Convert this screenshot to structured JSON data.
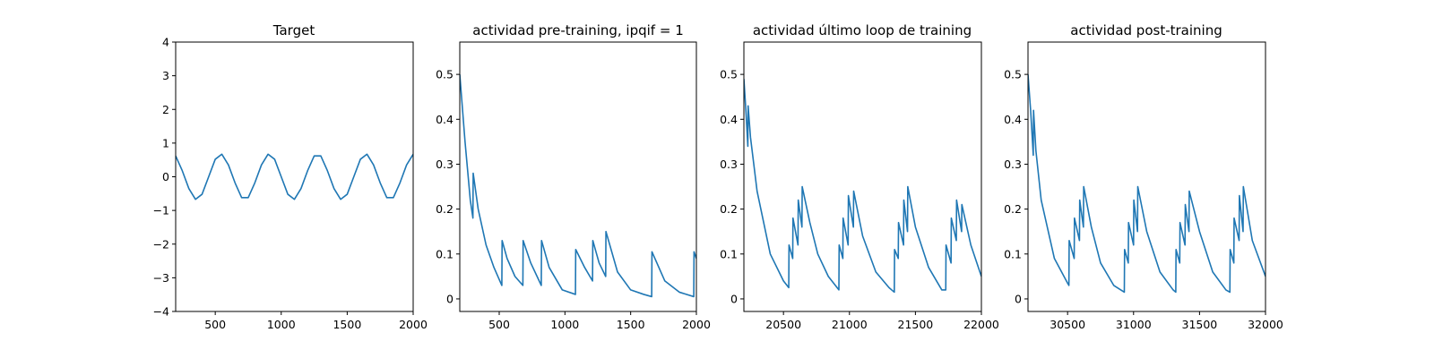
{
  "chart_data": [
    {
      "type": "line",
      "title": "Target",
      "xlabel": "",
      "ylabel": "",
      "xlim": [
        200,
        2000
      ],
      "ylim": [
        -4,
        4
      ],
      "xticks": [
        500,
        1000,
        1500,
        2000
      ],
      "yticks": [
        -4,
        -3,
        -2,
        -1,
        0,
        1,
        2,
        3,
        4
      ],
      "grid": false,
      "series": [
        {
          "x": [
            200,
            250,
            300,
            350,
            400,
            450,
            500,
            550,
            600,
            650,
            700,
            750,
            800,
            850,
            900,
            950,
            1000,
            1050,
            1100,
            1150,
            1200,
            1250,
            1300,
            1350,
            1400,
            1450,
            1500,
            1550,
            1600,
            1650,
            1700,
            1750,
            1800,
            1850,
            1900,
            1950,
            2000
          ],
          "y": [
            0.62,
            0.18,
            -0.35,
            -0.67,
            -0.52,
            0.0,
            0.52,
            0.67,
            0.35,
            -0.18,
            -0.62,
            -0.62,
            -0.18,
            0.35,
            0.67,
            0.52,
            0.0,
            -0.52,
            -0.67,
            -0.35,
            0.18,
            0.62,
            0.62,
            0.18,
            -0.35,
            -0.67,
            -0.52,
            0.0,
            0.52,
            0.67,
            0.35,
            -0.18,
            -0.62,
            -0.62,
            -0.18,
            0.35,
            0.67
          ]
        }
      ]
    },
    {
      "type": "line",
      "title": "actividad pre-training, ipqif = 1",
      "xlabel": "",
      "ylabel": "",
      "xlim": [
        200,
        2000
      ],
      "ylim": [
        -0.028,
        0.572
      ],
      "xticks": [
        500,
        1000,
        1500,
        2000
      ],
      "yticks": [
        0.0,
        0.1,
        0.2,
        0.3,
        0.4,
        0.5
      ],
      "grid": false,
      "series": [
        {
          "x": [
            200,
            240,
            280,
            300,
            302,
            340,
            400,
            460,
            520,
            522,
            560,
            620,
            680,
            682,
            740,
            820,
            822,
            880,
            980,
            1080,
            1082,
            1150,
            1210,
            1212,
            1260,
            1310,
            1312,
            1400,
            1500,
            1600,
            1660,
            1662,
            1760,
            1870,
            1980,
            1982,
            2000
          ],
          "y": [
            0.5,
            0.35,
            0.22,
            0.18,
            0.28,
            0.2,
            0.12,
            0.07,
            0.03,
            0.13,
            0.09,
            0.05,
            0.03,
            0.13,
            0.08,
            0.03,
            0.13,
            0.07,
            0.02,
            0.01,
            0.11,
            0.07,
            0.04,
            0.13,
            0.08,
            0.05,
            0.15,
            0.06,
            0.02,
            0.01,
            0.005,
            0.105,
            0.04,
            0.015,
            0.005,
            0.105,
            0.09
          ]
        }
      ]
    },
    {
      "type": "line",
      "title": "actividad último loop de training",
      "xlabel": "",
      "ylabel": "",
      "xlim": [
        20200,
        22000
      ],
      "ylim": [
        -0.028,
        0.572
      ],
      "xticks": [
        20500,
        21000,
        21500,
        22000
      ],
      "yticks": [
        0.0,
        0.1,
        0.2,
        0.3,
        0.4,
        0.5
      ],
      "grid": false,
      "series": [
        {
          "x": [
            20200,
            20215,
            20230,
            20232,
            20250,
            20300,
            20400,
            20500,
            20540,
            20542,
            20570,
            20572,
            20610,
            20612,
            20640,
            20642,
            20700,
            20760,
            20840,
            20920,
            20922,
            20950,
            20952,
            20990,
            20992,
            21030,
            21032,
            21100,
            21200,
            21300,
            21340,
            21342,
            21370,
            21372,
            21410,
            21412,
            21440,
            21442,
            21500,
            21600,
            21700,
            21730,
            21732,
            21770,
            21772,
            21810,
            21812,
            21850,
            21852,
            21920,
            22000
          ],
          "y": [
            0.49,
            0.42,
            0.34,
            0.43,
            0.36,
            0.24,
            0.1,
            0.04,
            0.025,
            0.12,
            0.09,
            0.18,
            0.12,
            0.22,
            0.16,
            0.25,
            0.17,
            0.1,
            0.05,
            0.02,
            0.12,
            0.09,
            0.18,
            0.12,
            0.23,
            0.16,
            0.24,
            0.14,
            0.06,
            0.025,
            0.015,
            0.11,
            0.09,
            0.17,
            0.12,
            0.22,
            0.15,
            0.25,
            0.16,
            0.07,
            0.02,
            0.02,
            0.12,
            0.08,
            0.18,
            0.13,
            0.22,
            0.15,
            0.21,
            0.12,
            0.05
          ]
        }
      ]
    },
    {
      "type": "line",
      "title": "actividad post-training",
      "xlabel": "",
      "ylabel": "",
      "xlim": [
        30200,
        32000
      ],
      "ylim": [
        -0.028,
        0.572
      ],
      "xticks": [
        30500,
        31000,
        31500,
        32000
      ],
      "yticks": [
        0.0,
        0.1,
        0.2,
        0.3,
        0.4,
        0.5
      ],
      "grid": false,
      "series": [
        {
          "x": [
            30200,
            30220,
            30240,
            30242,
            30260,
            30300,
            30400,
            30500,
            30510,
            30512,
            30550,
            30552,
            30590,
            30592,
            30620,
            30622,
            30680,
            30750,
            30850,
            30930,
            30932,
            30960,
            30962,
            31000,
            31002,
            31030,
            31032,
            31100,
            31200,
            31300,
            31320,
            31322,
            31350,
            31352,
            31390,
            31392,
            31420,
            31422,
            31500,
            31600,
            31700,
            31730,
            31732,
            31760,
            31762,
            31800,
            31802,
            31830,
            31832,
            31900,
            32000
          ],
          "y": [
            0.5,
            0.42,
            0.32,
            0.42,
            0.33,
            0.22,
            0.09,
            0.035,
            0.03,
            0.13,
            0.09,
            0.18,
            0.13,
            0.22,
            0.16,
            0.25,
            0.16,
            0.08,
            0.03,
            0.015,
            0.11,
            0.08,
            0.17,
            0.12,
            0.22,
            0.15,
            0.25,
            0.15,
            0.06,
            0.02,
            0.015,
            0.11,
            0.08,
            0.17,
            0.12,
            0.21,
            0.15,
            0.24,
            0.15,
            0.06,
            0.02,
            0.015,
            0.11,
            0.08,
            0.18,
            0.13,
            0.23,
            0.15,
            0.25,
            0.13,
            0.05
          ]
        }
      ]
    }
  ]
}
